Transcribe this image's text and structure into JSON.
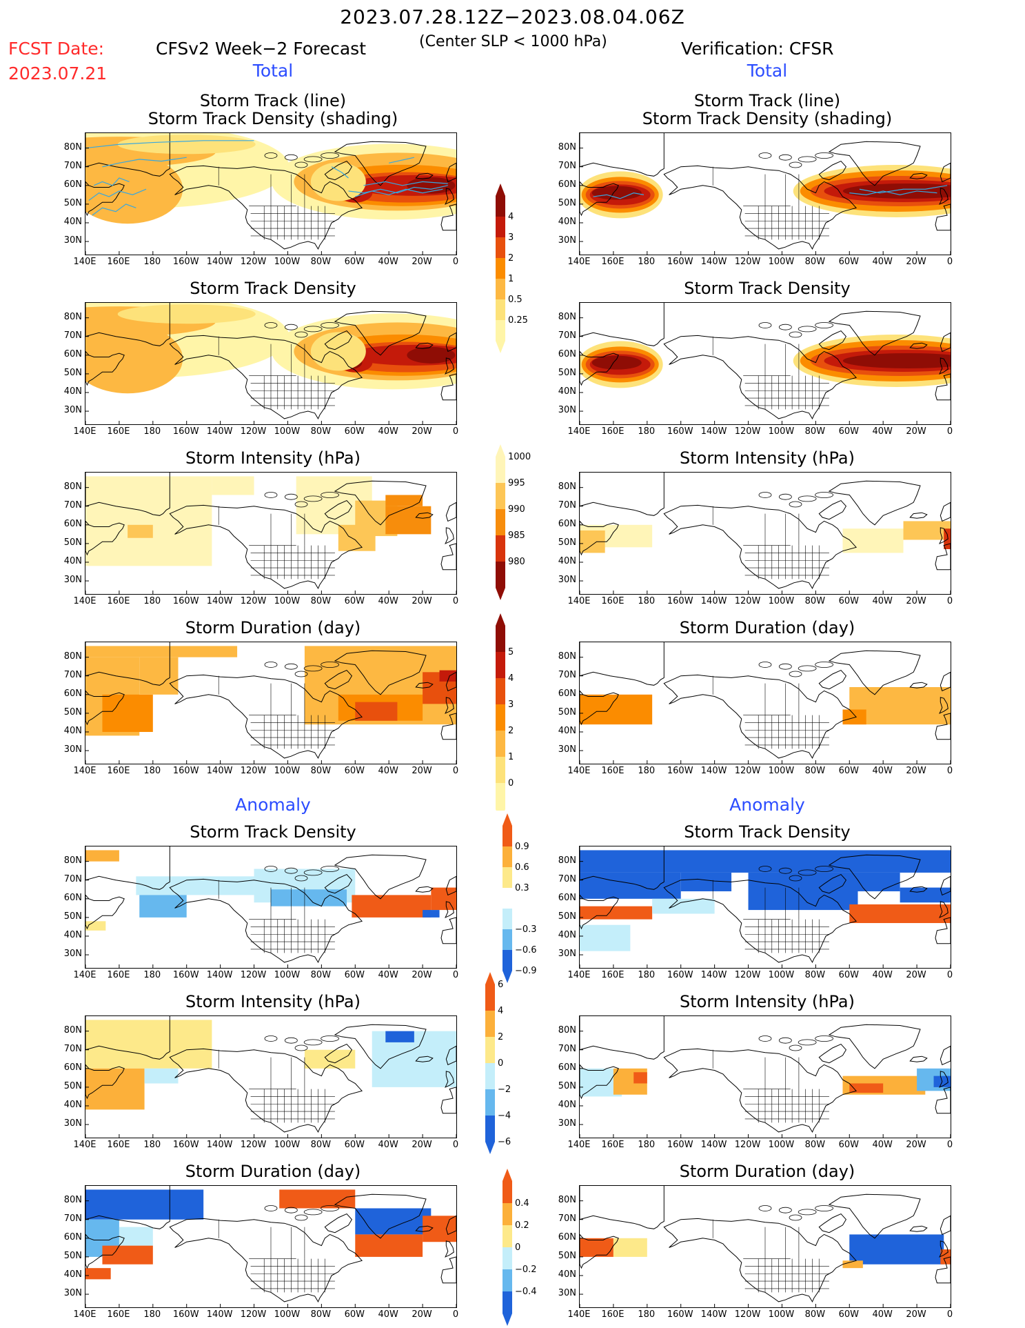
{
  "header": {
    "date_range": "2023.07.28.12Z−2023.08.04.06Z",
    "subtitle": "(Center SLP < 1000 hPa)",
    "fcst_label": "FCST Date:",
    "fcst_date": "2023.07.21",
    "model_title": "CFSv2 Week−2 Forecast",
    "verification_title": "Verification: CFSR"
  },
  "section_labels": {
    "total": "Total",
    "anomaly": "Anomaly"
  },
  "titles": {
    "track_line": "Storm Track (line)",
    "track_shading": "Storm Track Density (shading)",
    "density": "Storm Track Density",
    "intensity": "Storm Intensity (hPa)",
    "duration": "Storm Duration (day)"
  },
  "axes": {
    "lat_labels": [
      "80N",
      "70N",
      "60N",
      "50N",
      "40N",
      "30N"
    ],
    "lon_labels": [
      "140E",
      "160E",
      "180",
      "160W",
      "140W",
      "120W",
      "100W",
      "80W",
      "60W",
      "40W",
      "20W",
      "0"
    ]
  },
  "colorbars": {
    "density_total": {
      "labels": [
        "4",
        "3",
        "2",
        "1",
        "0.5",
        "0.25"
      ]
    },
    "intensity_total": {
      "labels": [
        "1000",
        "995",
        "990",
        "985",
        "980"
      ]
    },
    "duration_total": {
      "labels": [
        "5",
        "4",
        "3",
        "2",
        "1",
        "0"
      ]
    },
    "density_anom": {
      "labels": [
        "0.9",
        "0.6",
        "0.3",
        "−0.3",
        "−0.6",
        "−0.9"
      ]
    },
    "intensity_anom": {
      "labels": [
        "6",
        "4",
        "2",
        "0",
        "−2",
        "−4",
        "−6"
      ]
    },
    "duration_anom": {
      "labels": [
        "0.4",
        "0.2",
        "0",
        "−0.2",
        "−0.4"
      ]
    }
  },
  "colors": {
    "total_scale": [
      "#fff5a8",
      "#fde27a",
      "#fdb842",
      "#fb8c00",
      "#e8500d",
      "#c41a0a",
      "#8f0d05"
    ],
    "intensity_scale": [
      "#fff5b8",
      "#fdc656",
      "#f78d0c",
      "#d8340c",
      "#8f0d05"
    ],
    "anom_pos": [
      "#fde98a",
      "#fcb03a",
      "#f05b17"
    ],
    "anom_neg": [
      "#c4eefa",
      "#66b8ee",
      "#1f63da"
    ],
    "track_line": "#36a7e0",
    "land_outline": "#000000"
  }
}
